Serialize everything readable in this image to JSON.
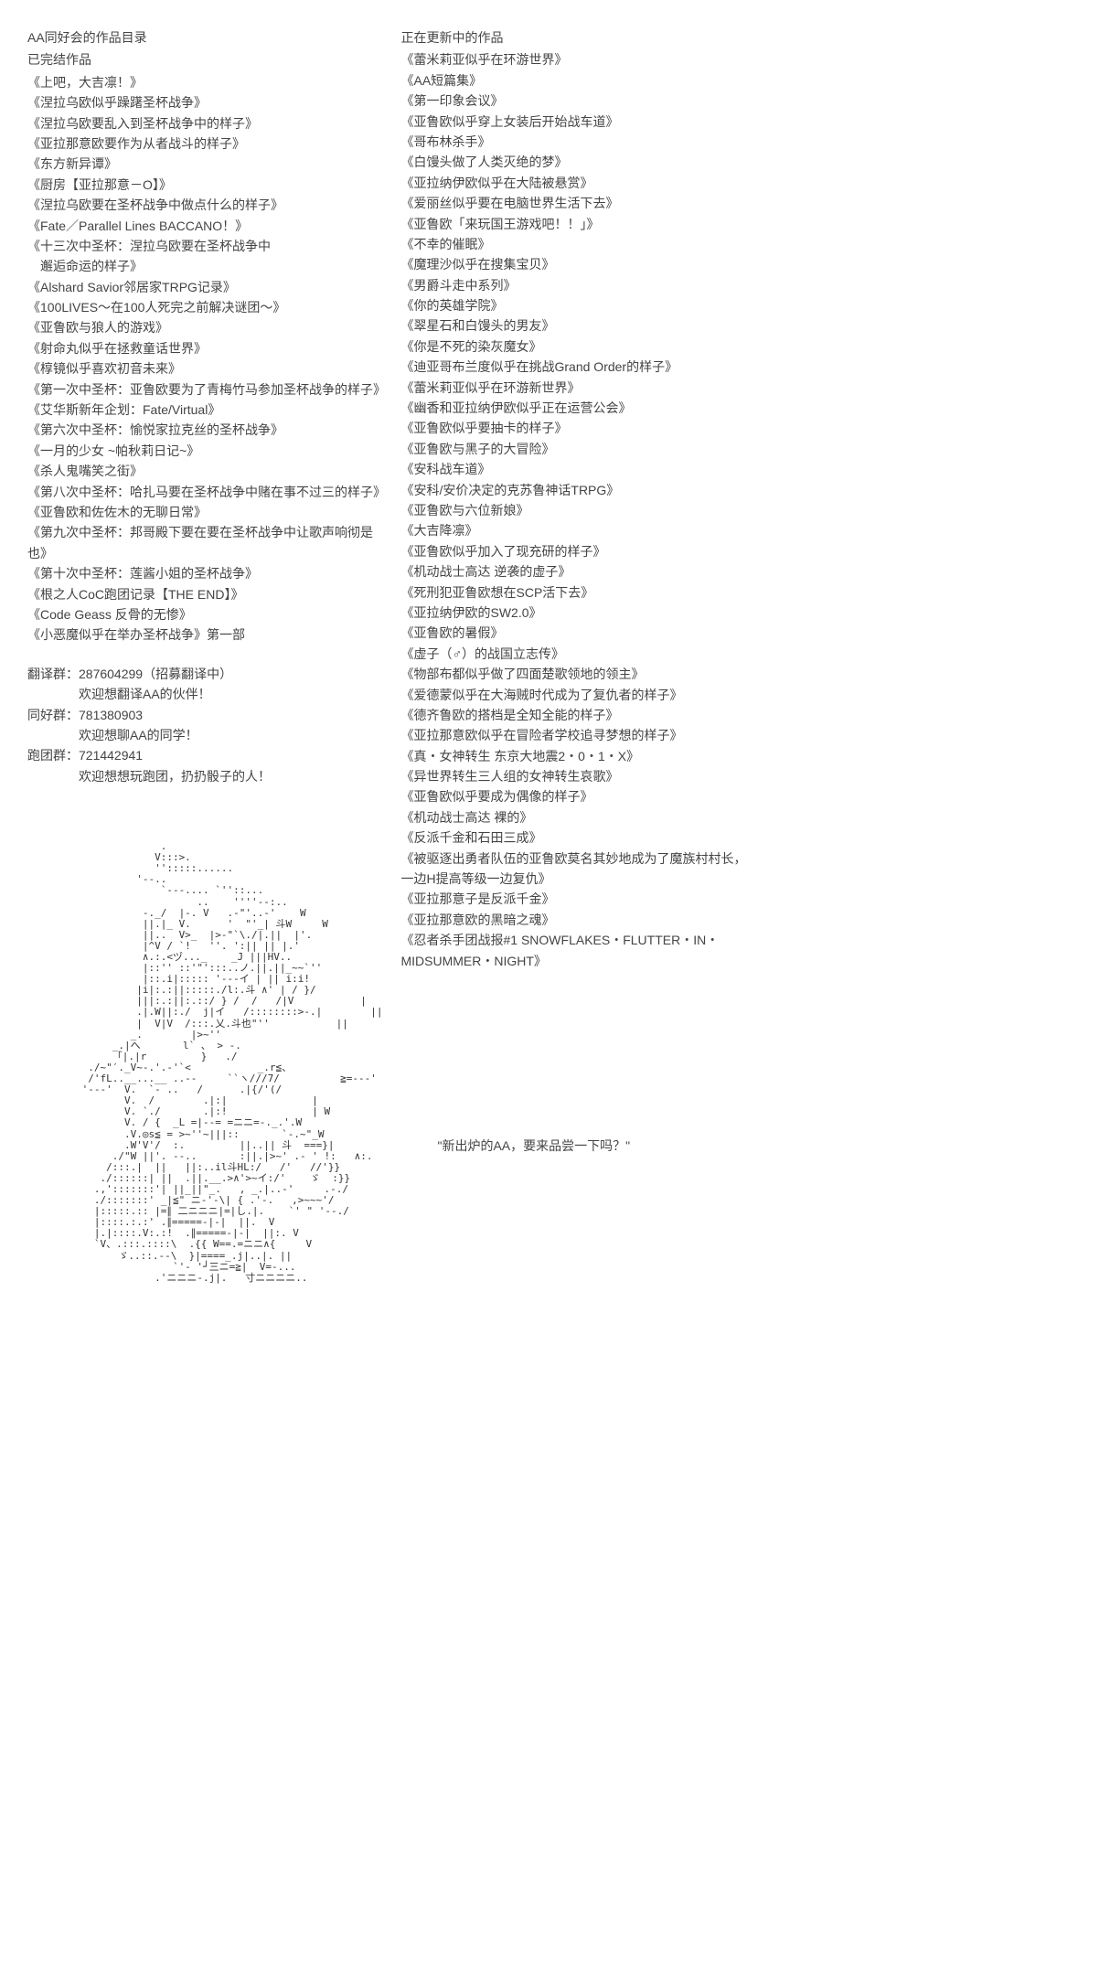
{
  "left": {
    "main_title": "AA同好会的作品目录",
    "completed_title": "已完结作品",
    "completed_works": [
      "《上吧，大吉凛！》",
      "《涅拉乌欧似乎躁躇圣杯战争》",
      "《涅拉乌欧要乱入到圣杯战争中的样子》",
      "《亚拉那意欧要作为从者战斗的样子》",
      "《东方新异谭》",
      "《厨房【亚拉那意－O】》",
      "《涅拉乌欧要在圣杯战争中做点什么的样子》",
      "《Fate／Parallel Lines BACCANO！》",
      "《十三次中圣杯：涅拉乌欧要在圣杯战争中",
      "　邂逅命运的样子》",
      "《Alshard Savior邻居家TRPG记录》",
      "《100LIVES～在100人死完之前解决谜团～》",
      "《亚鲁欧与狼人的游戏》",
      "《射命丸似乎在拯救童话世界》",
      "《椁镜似乎喜欢初音未来》",
      "《第一次中圣杯：亚鲁欧要为了青梅竹马参加圣杯战争的样子》",
      "《艾华斯新年企划：Fate/Virtual》",
      "《第六次中圣杯：愉悦家拉克丝的圣杯战争》",
      "《一月的少女 ~帕秋莉日记~》",
      "《杀人鬼嘴笑之街》",
      "《第八次中圣杯：哈扎马要在圣杯战争中赌在事不过三的样子》",
      "《亚鲁欧和佐佐木的无聊日常》",
      "《第九次中圣杯：邦哥殿下要在要在圣杯战争中让歌声响彻是也》",
      "《第十次中圣杯：莲酱小姐的圣杯战争》",
      "《根之人CoC跑团记录【THE END】》",
      "《Code Geass 反骨的无惨》",
      "《小恶魔似乎在举办圣杯战争》第一部"
    ],
    "groups": [
      {
        "label": "翻译群：287604299（招募翻译中）",
        "desc": "欢迎想翻译AA的伙伴！"
      },
      {
        "label": "同好群：781380903",
        "desc": "欢迎想聊AA的同学！"
      },
      {
        "label": "跑团群：721442941",
        "desc": "欢迎想想玩跑团，扔扔骰子的人！"
      }
    ]
  },
  "right": {
    "updating_title": "正在更新中的作品",
    "updating_works": [
      "《蕾米莉亚似乎在环游世界》",
      "《AA短篇集》",
      "《第一印象会议》",
      "《亚鲁欧似乎穿上女装后开始战车道》",
      "《哥布林杀手》",
      "《白馒头做了人类灭绝的梦》",
      "《亚拉纳伊欧似乎在大陆被悬赏》",
      "《爱丽丝似乎要在电脑世界生活下去》",
      "《亚鲁欧「来玩国王游戏吧！！」》",
      "《不幸的催眠》",
      "《魔理沙似乎在搜集宝贝》",
      "《男爵斗走中系列》",
      "《你的英雄学院》",
      "《翠星石和白馒头的男友》",
      "《你是不死的染灰魔女》",
      "《迪亚哥布兰度似乎在挑战Grand Order的样子》",
      "《蕾米莉亚似乎在环游新世界》",
      "《幽香和亚拉纳伊欧似乎正在运营公会》",
      "《亚鲁欧似乎要抽卡的样子》",
      "《亚鲁欧与黑子的大冒险》",
      "《安科战车道》",
      "《安科/安价决定的克苏鲁神话TRPG》",
      "《亚鲁欧与六位新娘》",
      "《大吉降凛》",
      "《亚鲁欧似乎加入了现充研的样子》",
      "《机动战士高达 逆袭的虚子》",
      "《死刑犯亚鲁欧想在SCP活下去》",
      "《亚拉纳伊欧的SW2.0》",
      "《亚鲁欧的暑假》",
      "《虚子（♂）的战国立志传》",
      "《物部布都似乎做了四面楚歌领地的领主》",
      "《爱德蒙似乎在大海贼时代成为了复仇者的样子》",
      "《德齐鲁欧的搭档是全知全能的样子》",
      "《亚拉那意欧似乎在冒险者学校追寻梦想的样子》",
      "《真・女神转生 东京大地震2・0・1・X》",
      "《异世界转生三人组的女神转生哀歌》",
      "《亚鲁欧似乎要成为偶像的样子》",
      "《机动战士高达 裸的》",
      "《反派千金和石田三成》",
      "《被驱逐出勇者队伍的亚鲁欧莫名其妙地成为了魔族村村长，",
      "一边H提高等级一边复仇》",
      "《亚拉那意子是反派千金》",
      "《亚拉那意欧的黑暗之魂》",
      "《忍者杀手团战报#1 SNOWFLAKES・FLUTTER・IN・",
      "MIDSUMMER・NIGHT》"
    ],
    "quote": "\"新出炉的AA，要来品尝一下吗？\""
  },
  "ascii_art": "                      .\n                     V:::>.\n                     '':::::......\n                  '--..\n                      `---.... `''::...\n                            ..    ''''--:..\n                   -._/  |-. V   .-\"'..-'    W\n                   ||.|_ V.      '  \"'_| 斗W     W\n                   ||..  V>_  |>-\"`\\./|.||  |'.\n                   |^V / `!   ''. ':|| || |.'\n                   ∧.:.<ヅ..._    _J |||HV..\n                   |::'' ::'\"':::..ノ.||.||_~~`''\n                   |::.i|::::: '---イ | || i:i!\n                  |i|:.:||:::::./l:.斗 ∧' | / }/\n                  |||:.:||:.::/ } /  /   /|V           |\n                  .|.W||:./  j|イ   /::::::::>-.|        ||\n                  |  V|V  /:::.乂.斗也\"''           ||\n                 _.        |>~''\n              _.|へ       l` 、 > -.\n              「|.|r         }   ./\n          ./~\"′._V~-.'.-'`<           _.r≦、\n          /'fL..__...__ ..--     ``ヽ///7/          ≧=---'\n         '---'  V.  `- ..   /      .|{/'(/\n                V.  /        .|:|              |\n                V. `./       .|:!              | W\n                V. / {  _L =|--= =ニニ=-._.'.W\n                .V.◎s≦ = >~''~|||::       `-.~\"_W\n                .W'V'/  :.         ||..|| 斗  ===}|\n              ./\"W ||'. --..       :||.|>~' .- ' !:   ∧:.\n             /:::.|  ||   ||:..il斗HL:/   /'   //'}}\n            ./::::::| ||  .||.__.>∧'>~イ:/'    ゞ  :}}\n           .,':::::::'| ||_||\"_.   , _.|..-'     .-./\n           ./:::::::' _|≦\" ニ-'-\\| { .'-.   ,>~~~'/\n           |:::::.:: |=∥ 二ニニニ|=|し.|.    `' \" '--./\n           |::::.:.:' .∥=====-|-|  ||.  V\n           |.|::::.V:.:!  .∥=====-|-|  ||:. V\n           `V、.:::.::::\\  .{{ W==.=ニニ∧{     V\n               ゞ..::.--\\  }|====_.j|..|. ||\n                        `'- '┘三ニ=≧|  V=-...\n                     .'ニニニ-.j|.   寸ニニニニ.."
}
